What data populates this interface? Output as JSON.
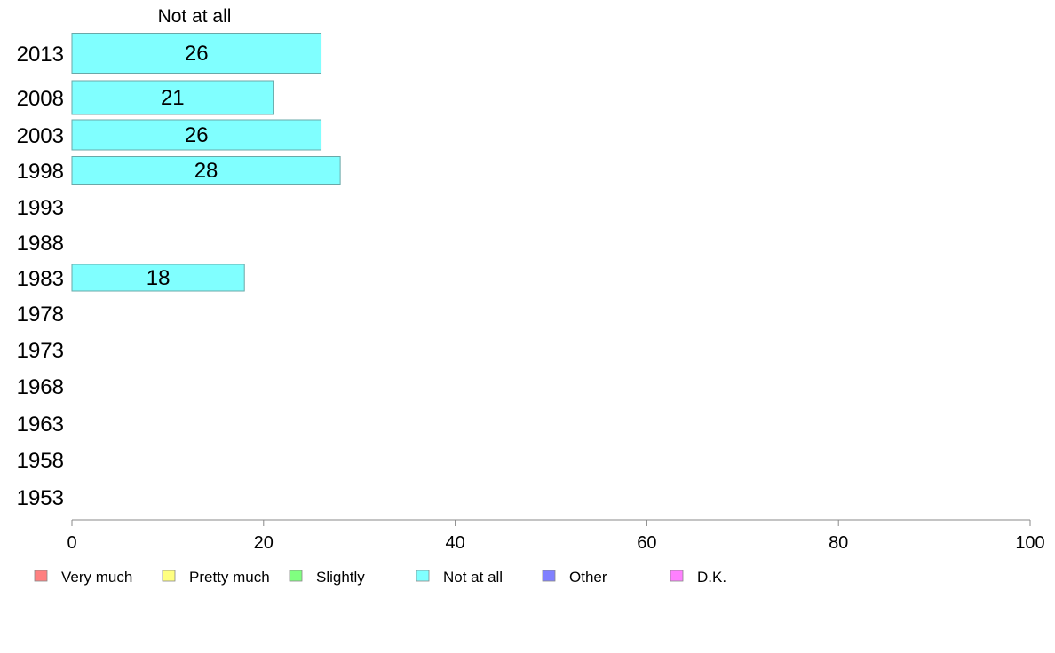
{
  "chart_data": {
    "type": "bar",
    "orientation": "horizontal",
    "title": "Not at all",
    "categories": [
      "2013",
      "2008",
      "2003",
      "1998",
      "1993",
      "1988",
      "1983",
      "1978",
      "1973",
      "1968",
      "1963",
      "1958",
      "1953"
    ],
    "series": [
      {
        "name": "Not at all",
        "color": "#80ffff",
        "values": [
          26,
          21,
          26,
          28,
          null,
          null,
          18,
          null,
          null,
          null,
          null,
          null,
          null
        ],
        "labels": [
          "26",
          "21",
          "26",
          "28",
          "",
          "",
          "18",
          "",
          "",
          "",
          "",
          "",
          ""
        ]
      }
    ],
    "xlim": [
      0,
      100
    ],
    "xticks": [
      0,
      20,
      40,
      60,
      80,
      100
    ],
    "xtick_labels": [
      "0",
      "20",
      "40",
      "60",
      "80",
      "100"
    ],
    "grid": false,
    "legend": {
      "placement": "bottom",
      "items": [
        {
          "label": "Very much",
          "color": "#ff8080"
        },
        {
          "label": "Pretty much",
          "color": "#ffff80"
        },
        {
          "label": "Slightly",
          "color": "#80ff80"
        },
        {
          "label": "Not at all",
          "color": "#80ffff"
        },
        {
          "label": "Other",
          "color": "#8080ff"
        },
        {
          "label": "D.K.",
          "color": "#ff80ff"
        }
      ]
    }
  }
}
